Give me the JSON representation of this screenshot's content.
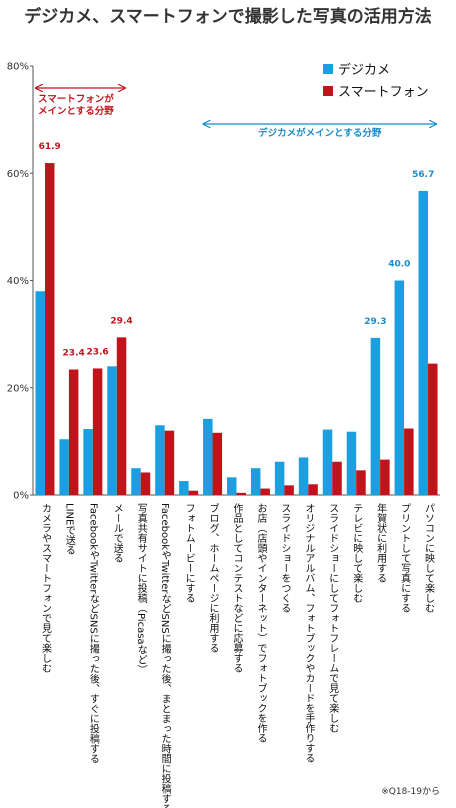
{
  "chart_data": {
    "type": "bar",
    "title": "デジカメ、スマートフォンで撮影した写真の活用方法",
    "y_ticks": [
      "0%",
      "20%",
      "40%",
      "60%",
      "80%"
    ],
    "ylim": [
      0,
      80
    ],
    "grid": false,
    "legend_position": "top-right",
    "categories": [
      "カメラやスマートフォンで見て楽しむ",
      "LINEで送る",
      "FacebookやTwitterなどSNSに撮った後、すぐに投稿する",
      "メールで送る",
      "写真共有サイトに投稿（Picasaなど）",
      "FacebookやTwitterなどSNSに撮った後、まとまった時間に投稿する",
      "フォトムービーにする",
      "ブログ、ホームページに利用する",
      "作品としてコンテストなどに応募する",
      "お店（店頭やインターネット）でフォトブックを作る",
      "スライドショーをつくる",
      "オリジナルアルバム、フォトブックやカードを手作りする",
      "スライドショーにしてフォトフレームで見て楽しむ",
      "テレビに映して楽しむ",
      "年賀状に利用する",
      "プリントして写真にする",
      "パソコンに映して楽しむ"
    ],
    "series": [
      {
        "name": "デジカメ",
        "color": "#1AA0E0",
        "values": [
          38.0,
          10.4,
          12.3,
          24.0,
          5.0,
          13.0,
          2.6,
          14.2,
          3.3,
          5.0,
          6.2,
          7.0,
          12.2,
          11.8,
          29.3,
          40.0,
          56.7
        ]
      },
      {
        "name": "スマートフォン",
        "color": "#C0141C",
        "values": [
          61.9,
          23.4,
          23.6,
          29.4,
          4.2,
          12.0,
          0.8,
          11.6,
          0.4,
          1.2,
          1.8,
          2.0,
          6.2,
          4.6,
          6.6,
          12.4,
          24.5
        ]
      }
    ],
    "data_labels": [
      {
        "series": 1,
        "index": 0,
        "text": "61.9",
        "color": "#C0141C"
      },
      {
        "series": 1,
        "index": 1,
        "text": "23.4",
        "color": "#C0141C"
      },
      {
        "series": 1,
        "index": 2,
        "text": "23.6",
        "color": "#C0141C"
      },
      {
        "series": 1,
        "index": 3,
        "text": "29.4",
        "color": "#C0141C"
      },
      {
        "series": 0,
        "index": 14,
        "text": "29.3",
        "color": "#1A8CC8"
      },
      {
        "series": 0,
        "index": 15,
        "text": "40.0",
        "color": "#1A8CC8"
      },
      {
        "series": 0,
        "index": 16,
        "text": "56.7",
        "color": "#1A8CC8"
      }
    ],
    "annotations": [
      {
        "text": [
          "スマートフォンが",
          "メインとする分野"
        ],
        "color": "#C0141C",
        "from_index": 0,
        "to_index": 3
      },
      {
        "text": [
          "デジカメがメインとする分野"
        ],
        "color": "#1A8CC8",
        "from_index": 7,
        "to_index": 16
      }
    ],
    "footnote": "※Q18-19から"
  }
}
